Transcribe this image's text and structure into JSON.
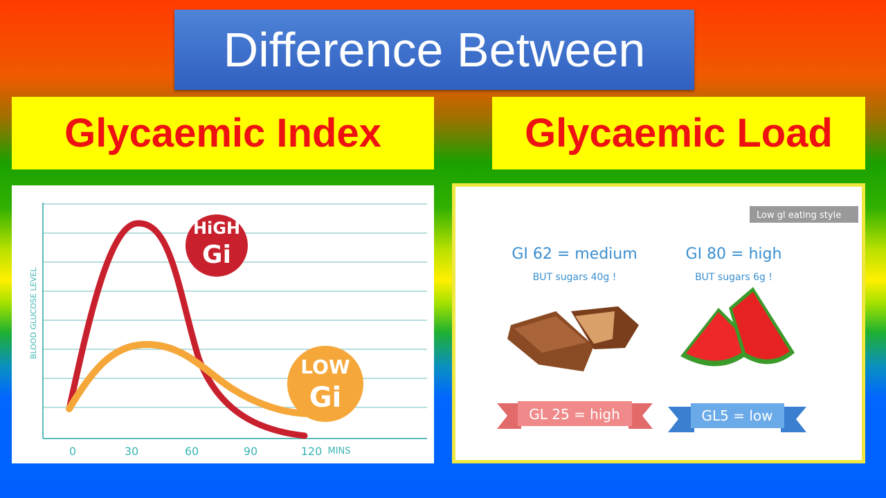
{
  "title": "Difference Between",
  "left": {
    "heading": "Glycaemic Index",
    "graph": {
      "y_label": "BLOOD GLUCOSE LEVEL",
      "x_ticks": [
        "0",
        "30",
        "60",
        "90",
        "120"
      ],
      "x_unit": "MINS",
      "high_badge": [
        "HiGH",
        "Gi"
      ],
      "low_badge": [
        "LOW",
        "Gi"
      ]
    }
  },
  "right": {
    "heading": "Glycaemic Load",
    "tag": "Low gl eating style",
    "items": [
      {
        "gi": "GI 62 = medium",
        "sugars": "BUT sugars 40g !",
        "gl": "GL 25 = high"
      },
      {
        "gi": "GI 80 = high",
        "sugars": "BUT sugars 6g !",
        "gl": "GL5 = low"
      }
    ]
  }
}
